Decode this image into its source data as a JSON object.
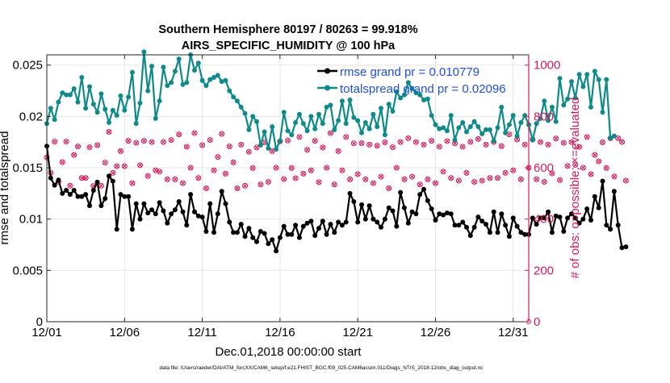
{
  "chart_data": {
    "type": "line",
    "title": "Southern Hemisphere 80197 / 80263 = 99.918%",
    "subtitle": "AIRS_SPECIFIC_HUMIDITY @ 100 hPa",
    "xlabel": "Dec.01,2018 00:00:00 start",
    "ylabel_left": "rmse and totalspread",
    "ylabel_right": "# of obs: o=possible; ×=evaluated",
    "footer": "data file: /Users/raeder/DAI/ATM_forcXX/CAM6_setup/f.e21.FHIST_BGC.f09_025.CAM6assim.011/Diags_NTrS_2018-12/obs_diag_output.nc",
    "x_range": [
      1,
      32
    ],
    "x_ticks": [
      {
        "value": 1,
        "label": "12/01"
      },
      {
        "value": 6,
        "label": "12/06"
      },
      {
        "value": 11,
        "label": "12/11"
      },
      {
        "value": 16,
        "label": "12/16"
      },
      {
        "value": 21,
        "label": "12/21"
      },
      {
        "value": 26,
        "label": "12/26"
      },
      {
        "value": 31,
        "label": "12/31"
      }
    ],
    "ylim_left": [
      0,
      0.026
    ],
    "y_ticks_left": [
      {
        "value": 0,
        "label": "0"
      },
      {
        "value": 0.005,
        "label": "0.005"
      },
      {
        "value": 0.01,
        "label": "0.01"
      },
      {
        "value": 0.015,
        "label": "0.015"
      },
      {
        "value": 0.02,
        "label": "0.02"
      },
      {
        "value": 0.025,
        "label": "0.025"
      }
    ],
    "ylim_right": [
      0,
      1040
    ],
    "y_ticks_right": [
      {
        "value": 0,
        "label": "0"
      },
      {
        "value": 200,
        "label": "200"
      },
      {
        "value": 400,
        "label": "400"
      },
      {
        "value": 600,
        "label": "600"
      },
      {
        "value": 800,
        "label": "800"
      },
      {
        "value": 1000,
        "label": "1000"
      }
    ],
    "legend": [
      {
        "name": "rmse grand pr = 0.010779",
        "color": "#000000"
      },
      {
        "name": "totalspread grand pr = 0.02096",
        "color": "#0f8a8a"
      }
    ],
    "colors": {
      "rmse": "#000000",
      "spread": "#0f8a8a",
      "obs": "#d6175a",
      "legend_text": "#1f4fe0"
    },
    "x_start": 1,
    "x_step": 0.25,
    "series": [
      {
        "name": "rmse",
        "values": [
          0.0171,
          0.014,
          0.0133,
          0.0138,
          0.0125,
          0.0128,
          0.0124,
          0.0128,
          0.0122,
          0.0122,
          0.0124,
          0.0113,
          0.0128,
          0.0136,
          0.0113,
          0.012,
          0.0142,
          0.0137,
          0.009,
          0.0124,
          0.0122,
          0.0122,
          0.009,
          0.0115,
          0.01,
          0.0115,
          0.0106,
          0.0109,
          0.0105,
          0.0116,
          0.0108,
          0.0096,
          0.0105,
          0.0109,
          0.0117,
          0.0107,
          0.0094,
          0.0124,
          0.0107,
          0.0103,
          0.0102,
          0.0088,
          0.0115,
          0.0087,
          0.0105,
          0.0127,
          0.0115,
          0.0097,
          0.0087,
          0.0087,
          0.0095,
          0.0083,
          0.0091,
          0.0082,
          0.0078,
          0.0088,
          0.0086,
          0.0076,
          0.008,
          0.0069,
          0.0082,
          0.0093,
          0.0085,
          0.0085,
          0.0094,
          0.0082,
          0.0093,
          0.0096,
          0.0098,
          0.0084,
          0.0091,
          0.0098,
          0.0085,
          0.0095,
          0.0087,
          0.0097,
          0.0094,
          0.0097,
          0.0125,
          0.0117,
          0.0097,
          0.0114,
          0.01,
          0.0113,
          0.01,
          0.0097,
          0.0092,
          0.01,
          0.0111,
          0.0108,
          0.0093,
          0.0126,
          0.0111,
          0.0096,
          0.0107,
          0.0105,
          0.0124,
          0.0129,
          0.0118,
          0.011,
          0.0099,
          0.0105,
          0.0104,
          0.0106,
          0.0105,
          0.0094,
          0.0094,
          0.0097,
          0.0092,
          0.0084,
          0.0092,
          0.0102,
          0.0098,
          0.0095,
          0.0087,
          0.0107,
          0.0087,
          0.0105,
          0.0094,
          0.0083,
          0.0101,
          0.0093,
          0.0087,
          0.0085,
          0.0085,
          0.0101,
          0.0095,
          0.0101,
          0.0101,
          0.0107,
          0.0087,
          0.0103,
          0.0102,
          0.0088,
          0.0101,
          0.0105,
          0.0101,
          0.0096,
          0.01,
          0.011,
          0.0099,
          0.0122,
          0.0111,
          0.0137,
          0.0094,
          0.009,
          0.0127,
          0.0094,
          0.0072,
          0.0073
        ]
      },
      {
        "name": "totalspread",
        "values": [
          0.0193,
          0.0208,
          0.0197,
          0.0214,
          0.0223,
          0.0221,
          0.0221,
          0.0227,
          0.0214,
          0.0238,
          0.0208,
          0.0229,
          0.0212,
          0.0204,
          0.0222,
          0.0207,
          0.0194,
          0.0206,
          0.0201,
          0.022,
          0.0206,
          0.0219,
          0.0243,
          0.0193,
          0.0213,
          0.0263,
          0.0225,
          0.0249,
          0.0198,
          0.0215,
          0.0248,
          0.023,
          0.0233,
          0.0244,
          0.0256,
          0.0231,
          0.0233,
          0.026,
          0.0245,
          0.0252,
          0.0235,
          0.023,
          0.0236,
          0.0238,
          0.024,
          0.0234,
          0.0235,
          0.0225,
          0.0219,
          0.0215,
          0.0209,
          0.0203,
          0.0187,
          0.02,
          0.0195,
          0.0172,
          0.0185,
          0.0169,
          0.019,
          0.0168,
          0.0176,
          0.0204,
          0.0186,
          0.0182,
          0.0194,
          0.0202,
          0.0193,
          0.0186,
          0.02,
          0.0188,
          0.0202,
          0.0193,
          0.0209,
          0.0211,
          0.0187,
          0.0196,
          0.0215,
          0.0193,
          0.0216,
          0.0199,
          0.0196,
          0.0184,
          0.0194,
          0.0188,
          0.0202,
          0.019,
          0.0208,
          0.0182,
          0.0212,
          0.0205,
          0.0224,
          0.0218,
          0.0221,
          0.0233,
          0.0227,
          0.0223,
          0.0221,
          0.0216,
          0.0217,
          0.0201,
          0.0192,
          0.0188,
          0.0189,
          0.0186,
          0.0201,
          0.0177,
          0.0189,
          0.0194,
          0.0185,
          0.019,
          0.0195,
          0.019,
          0.0183,
          0.0187,
          0.0187,
          0.0176,
          0.0189,
          0.0209,
          0.0184,
          0.0192,
          0.0201,
          0.0181,
          0.0194,
          0.0201,
          0.0192,
          0.0177,
          0.0193,
          0.0198,
          0.0215,
          0.0196,
          0.0209,
          0.0195,
          0.0237,
          0.0211,
          0.0217,
          0.0234,
          0.0218,
          0.0241,
          0.0229,
          0.0241,
          0.0209,
          0.0244,
          0.0236,
          0.0204,
          0.0236,
          0.0179,
          0.0181
        ]
      },
      {
        "name": "obs_possible",
        "axis": "right",
        "values": [
          640,
          580,
          702,
          545,
          622,
          702,
          530,
          650,
          683,
          560,
          560,
          680,
          529,
          688,
          530,
          620,
          740,
          580,
          606,
          665,
          606,
          705,
          540,
          697,
          610,
          705,
          568,
          700,
          590,
          585,
          700,
          555,
          708,
          555,
          730,
          540,
          682,
          600,
          735,
          560,
          688,
          520,
          708,
          590,
          642,
          732,
          577,
          683,
          621,
          520,
          690,
          530,
          662,
          599,
          679,
          535,
          699,
          545,
          665,
          600,
          703,
          556,
          706,
          599,
          559,
          720,
          577,
          670,
          590,
          705,
          544,
          679,
          600,
          735,
          535,
          665,
          590,
          720,
          555,
          695,
          575,
          696,
          555,
          690,
          540,
          686,
          565,
          699,
          520,
          680,
          600,
          700,
          555,
          715,
          565,
          700,
          535,
          690,
          555,
          705,
          540,
          682,
          585,
          704,
          560,
          695,
          550,
          682,
          580,
          701,
          545,
          712,
          550,
          690,
          560,
          700,
          560,
          684,
          580,
          730,
          590,
          710,
          555,
          690,
          600,
          710,
          555,
          700,
          545,
          690,
          578,
          714,
          552,
          697,
          607,
          700,
          611,
          681,
          600,
          720,
          575,
          650,
          625,
          699,
          599,
          715,
          566,
          715,
          700,
          550
        ]
      }
    ]
  }
}
